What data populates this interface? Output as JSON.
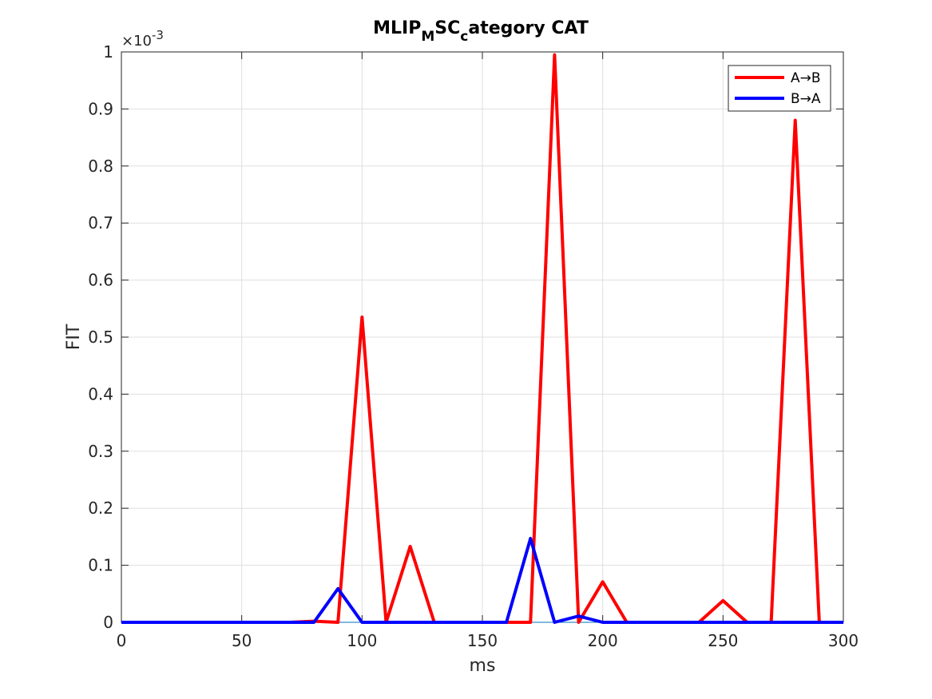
{
  "chart_data": {
    "type": "line",
    "title": {
      "main": "MLIP",
      "sub1": "M",
      "mid": "SC",
      "sub2": "c",
      "rest": "ategory CAT"
    },
    "xlabel": "ms",
    "ylabel": "FIT",
    "y_exponent_label": {
      "times": "×10",
      "exp": "-3"
    },
    "xlim": [
      0,
      300
    ],
    "ylim": [
      0,
      1
    ],
    "xticks": [
      0,
      50,
      100,
      150,
      200,
      250,
      300
    ],
    "yticks": [
      0,
      0.1,
      0.2,
      0.3,
      0.4,
      0.5,
      0.6,
      0.7,
      0.8,
      0.9,
      1
    ],
    "xtick_labels": [
      "0",
      "50",
      "100",
      "150",
      "200",
      "250",
      "300"
    ],
    "ytick_labels": [
      "0",
      "0.1",
      "0.2",
      "0.3",
      "0.4",
      "0.5",
      "0.6",
      "0.7",
      "0.8",
      "0.9",
      "1"
    ],
    "grid": true,
    "legend_position": "top-right",
    "x": [
      0,
      10,
      20,
      30,
      40,
      50,
      60,
      70,
      80,
      90,
      100,
      110,
      120,
      130,
      140,
      150,
      160,
      170,
      180,
      190,
      200,
      210,
      220,
      230,
      240,
      250,
      260,
      270,
      280,
      290,
      300
    ],
    "series": [
      {
        "name": "A→B",
        "color": "#ff0000",
        "values": [
          0,
          0,
          0,
          0,
          0,
          0,
          0,
          0,
          0.002,
          0,
          0.535,
          0,
          0.133,
          0,
          0,
          0,
          0,
          0,
          0.995,
          0,
          0.071,
          0,
          0,
          0,
          0,
          0.038,
          0,
          0,
          0.88,
          0,
          0
        ]
      },
      {
        "name": "B→A",
        "color": "#0000ff",
        "values": [
          0,
          0,
          0,
          0,
          0,
          0,
          0,
          0,
          0,
          0.059,
          0,
          0,
          0,
          0,
          0,
          0,
          0,
          0.147,
          0,
          0.011,
          0,
          0,
          0,
          0,
          0,
          0,
          0,
          0,
          0,
          0,
          0
        ]
      }
    ],
    "baseline_color": "#0072bd"
  }
}
